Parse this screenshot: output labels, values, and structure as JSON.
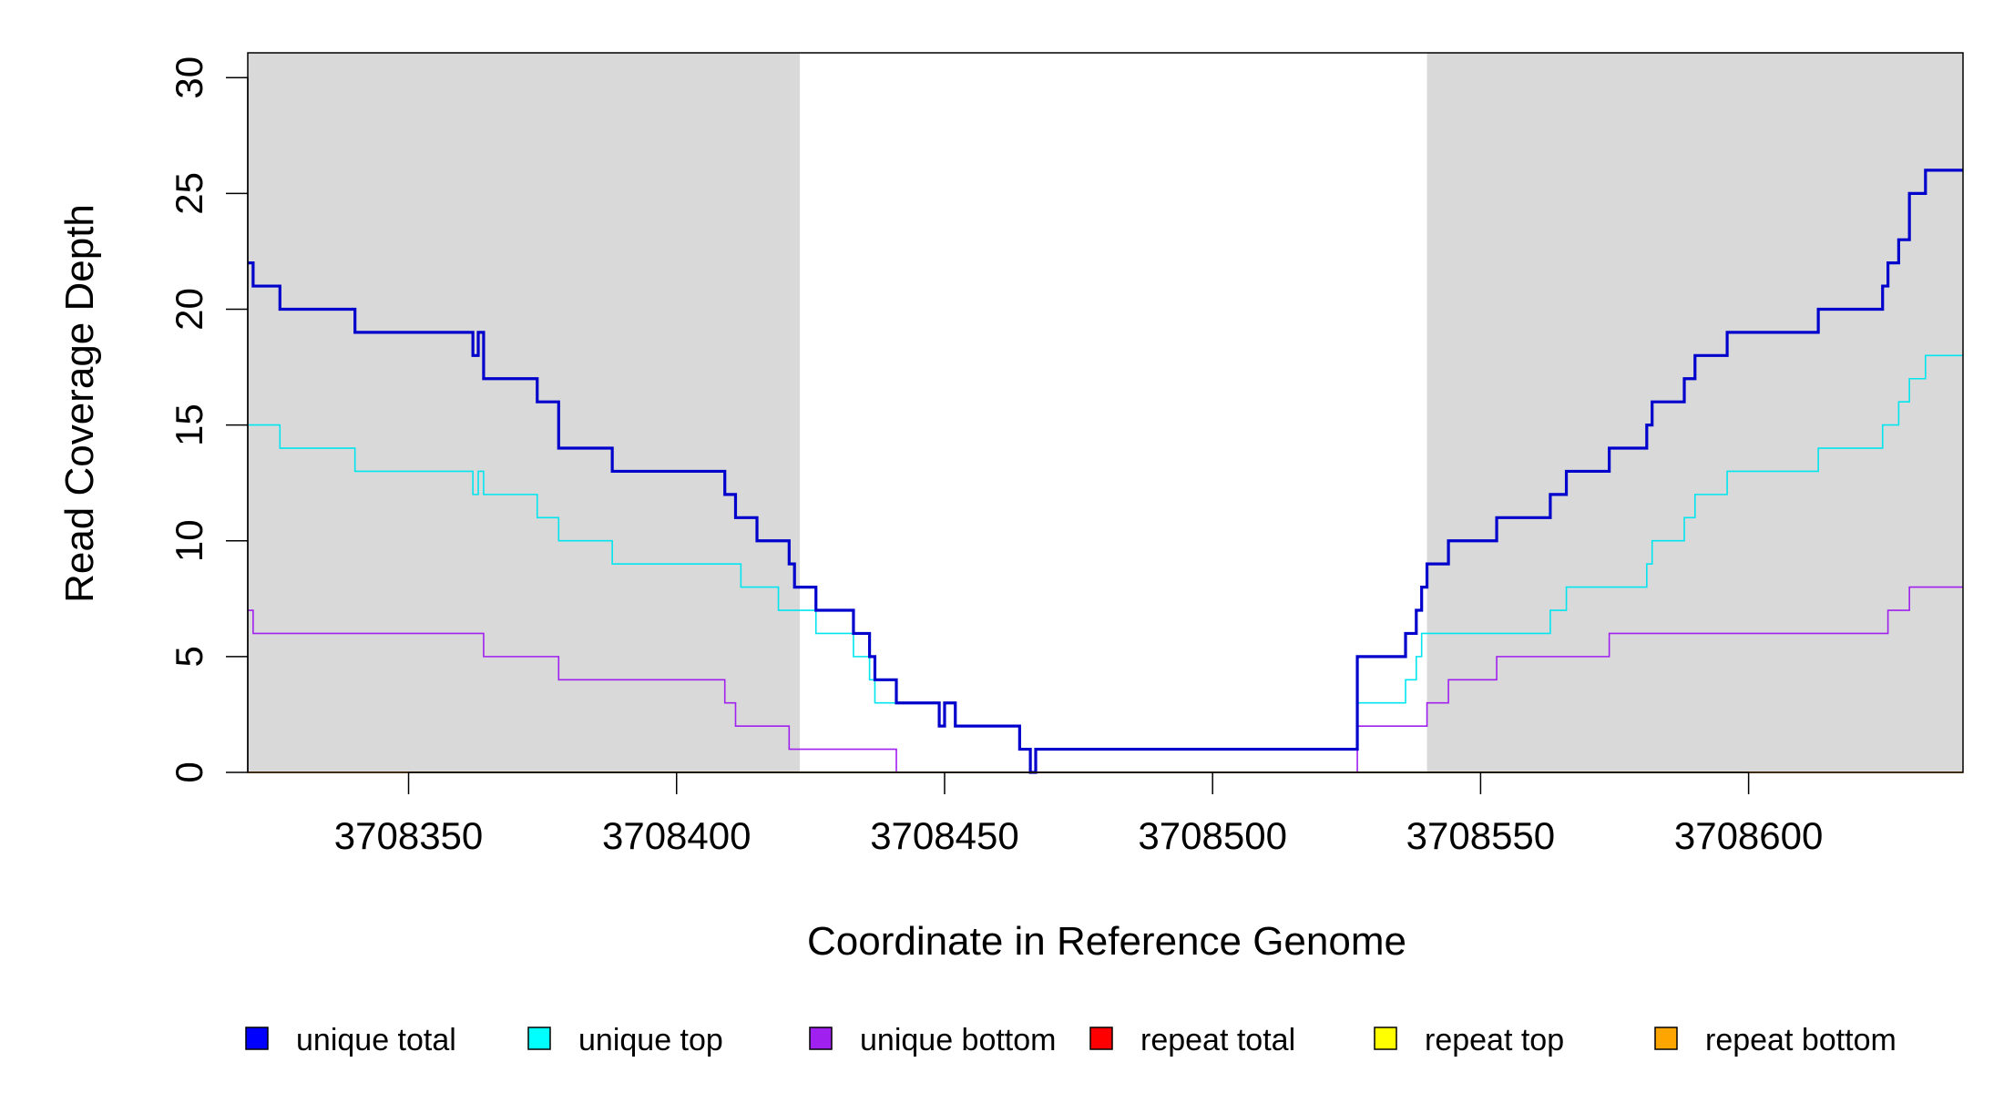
{
  "chart_data": {
    "type": "line",
    "title": "",
    "xlabel": "Coordinate in Reference Genome",
    "ylabel": "Read Coverage Depth",
    "xlim": [
      3708320,
      3708640
    ],
    "ylim": [
      0,
      30
    ],
    "x_ticks": [
      3708350,
      3708400,
      3708450,
      3708500,
      3708550,
      3708600
    ],
    "x_tick_labels": [
      "3708350",
      "3708400",
      "3708450",
      "3708500",
      "3708550",
      "3708600"
    ],
    "y_ticks": [
      0,
      5,
      10,
      15,
      20,
      25,
      30
    ],
    "y_tick_labels": [
      "0",
      "5",
      "10",
      "15",
      "20",
      "25",
      "30"
    ],
    "grid": false,
    "legend_position": "bottom",
    "background_color": "#ffffff",
    "shaded_region_color": "#d9d9d9",
    "shaded_regions": [
      {
        "x0": 3708320,
        "x1": 3708423
      },
      {
        "x0": 3708540,
        "x1": 3708640
      }
    ],
    "series": [
      {
        "name": "unique total",
        "color": "#0000cd",
        "style": "step",
        "line_weight": "thick",
        "points": [
          [
            3708320,
            22
          ],
          [
            3708321,
            21
          ],
          [
            3708326,
            20
          ],
          [
            3708340,
            19
          ],
          [
            3708362,
            18
          ],
          [
            3708363,
            19
          ],
          [
            3708364,
            17
          ],
          [
            3708374,
            16
          ],
          [
            3708378,
            14
          ],
          [
            3708388,
            13
          ],
          [
            3708409,
            12
          ],
          [
            3708411,
            11
          ],
          [
            3708415,
            10
          ],
          [
            3708421,
            9
          ],
          [
            3708422,
            8
          ],
          [
            3708426,
            7
          ],
          [
            3708433,
            6
          ],
          [
            3708436,
            5
          ],
          [
            3708437,
            4
          ],
          [
            3708441,
            3
          ],
          [
            3708449,
            2
          ],
          [
            3708450,
            3
          ],
          [
            3708452,
            2
          ],
          [
            3708464,
            1
          ],
          [
            3708466,
            0
          ],
          [
            3708467,
            1
          ],
          [
            3708527,
            5
          ],
          [
            3708536,
            6
          ],
          [
            3708538,
            7
          ],
          [
            3708539,
            8
          ],
          [
            3708540,
            9
          ],
          [
            3708544,
            10
          ],
          [
            3708553,
            11
          ],
          [
            3708563,
            12
          ],
          [
            3708566,
            13
          ],
          [
            3708574,
            14
          ],
          [
            3708581,
            15
          ],
          [
            3708582,
            16
          ],
          [
            3708588,
            17
          ],
          [
            3708590,
            18
          ],
          [
            3708596,
            19
          ],
          [
            3708613,
            20
          ],
          [
            3708625,
            21
          ],
          [
            3708626,
            22
          ],
          [
            3708628,
            23
          ],
          [
            3708630,
            25
          ],
          [
            3708633,
            26
          ],
          [
            3708640,
            26
          ]
        ]
      },
      {
        "name": "unique top",
        "color": "#00e5ee",
        "style": "step",
        "line_weight": "thin",
        "points": [
          [
            3708320,
            15
          ],
          [
            3708326,
            14
          ],
          [
            3708340,
            13
          ],
          [
            3708362,
            12
          ],
          [
            3708363,
            13
          ],
          [
            3708364,
            12
          ],
          [
            3708374,
            11
          ],
          [
            3708378,
            10
          ],
          [
            3708388,
            9
          ],
          [
            3708412,
            8
          ],
          [
            3708419,
            7
          ],
          [
            3708422,
            7
          ],
          [
            3708426,
            6
          ],
          [
            3708433,
            5
          ],
          [
            3708436,
            4
          ],
          [
            3708437,
            3
          ],
          [
            3708449,
            2
          ],
          [
            3708450,
            3
          ],
          [
            3708452,
            2
          ],
          [
            3708464,
            1
          ],
          [
            3708466,
            0
          ],
          [
            3708467,
            1
          ],
          [
            3708527,
            3
          ],
          [
            3708536,
            4
          ],
          [
            3708538,
            5
          ],
          [
            3708539,
            6
          ],
          [
            3708563,
            7
          ],
          [
            3708566,
            8
          ],
          [
            3708581,
            9
          ],
          [
            3708582,
            10
          ],
          [
            3708588,
            11
          ],
          [
            3708590,
            12
          ],
          [
            3708596,
            13
          ],
          [
            3708613,
            14
          ],
          [
            3708625,
            15
          ],
          [
            3708628,
            16
          ],
          [
            3708630,
            17
          ],
          [
            3708633,
            18
          ],
          [
            3708640,
            18
          ]
        ]
      },
      {
        "name": "unique bottom",
        "color": "#a020f0",
        "style": "step",
        "line_weight": "thin",
        "points": [
          [
            3708320,
            7
          ],
          [
            3708321,
            6
          ],
          [
            3708364,
            5
          ],
          [
            3708378,
            4
          ],
          [
            3708409,
            3
          ],
          [
            3708411,
            2
          ],
          [
            3708421,
            1
          ],
          [
            3708441,
            0
          ],
          [
            3708527,
            2
          ],
          [
            3708540,
            3
          ],
          [
            3708544,
            4
          ],
          [
            3708553,
            5
          ],
          [
            3708574,
            6
          ],
          [
            3708626,
            7
          ],
          [
            3708630,
            8
          ],
          [
            3708640,
            8
          ]
        ]
      },
      {
        "name": "repeat total",
        "color": "#ff0000",
        "style": "step",
        "line_weight": "thin",
        "points": [
          [
            3708320,
            0
          ],
          [
            3708640,
            0
          ]
        ]
      },
      {
        "name": "repeat top",
        "color": "#ffff00",
        "style": "step",
        "line_weight": "thin",
        "points": [
          [
            3708320,
            0
          ],
          [
            3708640,
            0
          ]
        ]
      },
      {
        "name": "repeat bottom",
        "color": "#ffa500",
        "style": "step",
        "line_weight": "thin",
        "points": [
          [
            3708320,
            0
          ],
          [
            3708640,
            0
          ]
        ]
      }
    ],
    "legend": [
      {
        "label": "unique total",
        "color": "#0000ff"
      },
      {
        "label": "unique top",
        "color": "#00ffff"
      },
      {
        "label": "unique bottom",
        "color": "#a020f0"
      },
      {
        "label": "repeat total",
        "color": "#ff0000"
      },
      {
        "label": "repeat top",
        "color": "#ffff00"
      },
      {
        "label": "repeat bottom",
        "color": "#ffa500"
      }
    ]
  }
}
